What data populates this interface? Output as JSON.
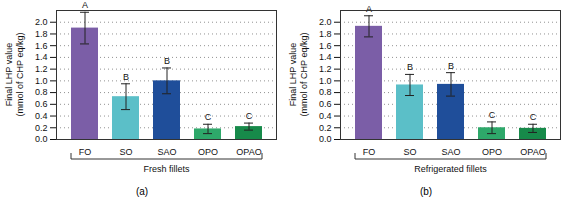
{
  "chart_data": [
    {
      "type": "bar",
      "title": "(a)",
      "xlabel": "Fresh fillets",
      "ylabel": "Final LHP value\n(mmol of CHP eq/kg)",
      "categories": [
        "FO",
        "SO",
        "SAO",
        "OPO",
        "OPAO"
      ],
      "values": [
        1.9,
        0.73,
        1.0,
        0.18,
        0.22
      ],
      "errors": [
        0.27,
        0.22,
        0.22,
        0.08,
        0.06
      ],
      "annotations": [
        "A",
        "B",
        "B",
        "C",
        "C"
      ],
      "colors": [
        "#7b5ea7",
        "#5bbfc8",
        "#1f4e9a",
        "#2ea86a",
        "#178a4a"
      ],
      "ylim": [
        0,
        2.2
      ],
      "yticks": [
        {
          "value": 0,
          "label": "0.0"
        },
        {
          "value": 0.2,
          "label": "0.2"
        },
        {
          "value": 0.4,
          "label": "0.4"
        },
        {
          "value": 0.6,
          "label": "0.6"
        },
        {
          "value": 0.8,
          "label": "0.8"
        },
        {
          "value": 1,
          "label": "1.0"
        },
        {
          "value": 1.2,
          "label": "1.2"
        },
        {
          "value": 1.4,
          "label": "1.4"
        },
        {
          "value": 1.6,
          "label": "1.6"
        },
        {
          "value": 1.8,
          "label": "1.8"
        },
        {
          "value": 2,
          "label": "2.0"
        }
      ],
      "grid": true
    },
    {
      "type": "bar",
      "title": "(b)",
      "xlabel": "Refrigerated fillets",
      "ylabel": "Final LHP value\n(mmol of CHP eq/kg)",
      "categories": [
        "FO",
        "SO",
        "SAO",
        "OPO",
        "OPAO"
      ],
      "values": [
        1.93,
        0.93,
        0.94,
        0.2,
        0.19
      ],
      "errors": [
        0.18,
        0.18,
        0.2,
        0.1,
        0.07
      ],
      "annotations": [
        "A",
        "B",
        "B",
        "C",
        "C"
      ],
      "colors": [
        "#7b5ea7",
        "#5bbfc8",
        "#1f4e9a",
        "#2ea86a",
        "#178a4a"
      ],
      "ylim": [
        0,
        2.2
      ],
      "yticks": [
        {
          "value": 0,
          "label": "0.0"
        },
        {
          "value": 0.2,
          "label": "0.2"
        },
        {
          "value": 0.4,
          "label": "0.4"
        },
        {
          "value": 0.6,
          "label": "0.6"
        },
        {
          "value": 0.8,
          "label": "0.8"
        },
        {
          "value": 1,
          "label": "1.0"
        },
        {
          "value": 1.2,
          "label": "1.2"
        },
        {
          "value": 1.4,
          "label": "1.4"
        },
        {
          "value": 1.6,
          "label": "1.6"
        },
        {
          "value": 1.8,
          "label": "1.8"
        },
        {
          "value": 2,
          "label": "2.0"
        }
      ],
      "grid": true
    }
  ]
}
